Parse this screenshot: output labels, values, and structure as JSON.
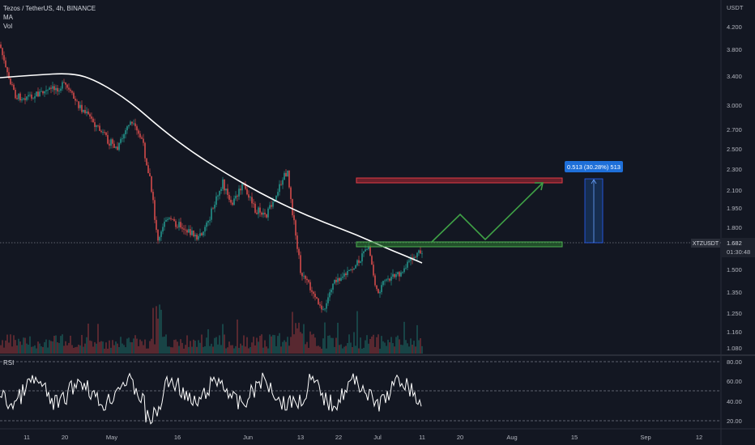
{
  "legend": {
    "symbol_line": "Tezos / TetherUS, 4h, BINANCE",
    "indicator_ma": "MA",
    "indicator_vol": "Vol"
  },
  "price_axis": {
    "currency": "USDT",
    "ticks": [
      "4.200",
      "3.800",
      "3.400",
      "3.000",
      "2.700",
      "2.500",
      "2.300",
      "2.100",
      "1.950",
      "1.800",
      "1.500",
      "1.350",
      "1.250",
      "1.160",
      "1.080"
    ],
    "last_symbol": "XTZUSDT",
    "last_price": "1.682",
    "countdown": "01:30:48"
  },
  "rsi_panel": {
    "label": "RSI",
    "ticks": [
      "80.00",
      "60.00",
      "40.00",
      "20.00"
    ]
  },
  "time_axis": {
    "labels": [
      "11",
      "20",
      "May",
      "16",
      "Jun",
      "13",
      "22",
      "Jul",
      "11",
      "20",
      "Aug",
      "15",
      "Sep",
      "12"
    ]
  },
  "measure_label": "0.513 (30.28%) 513",
  "colors": {
    "background": "#131722",
    "up": "#26a69a",
    "down": "#ef5350",
    "ma": "#ffffff",
    "resistance_zone": "#b22833",
    "support_zone": "#4caf50",
    "projection": "#3fa146",
    "measure_box": "#1e6fd9"
  }
}
